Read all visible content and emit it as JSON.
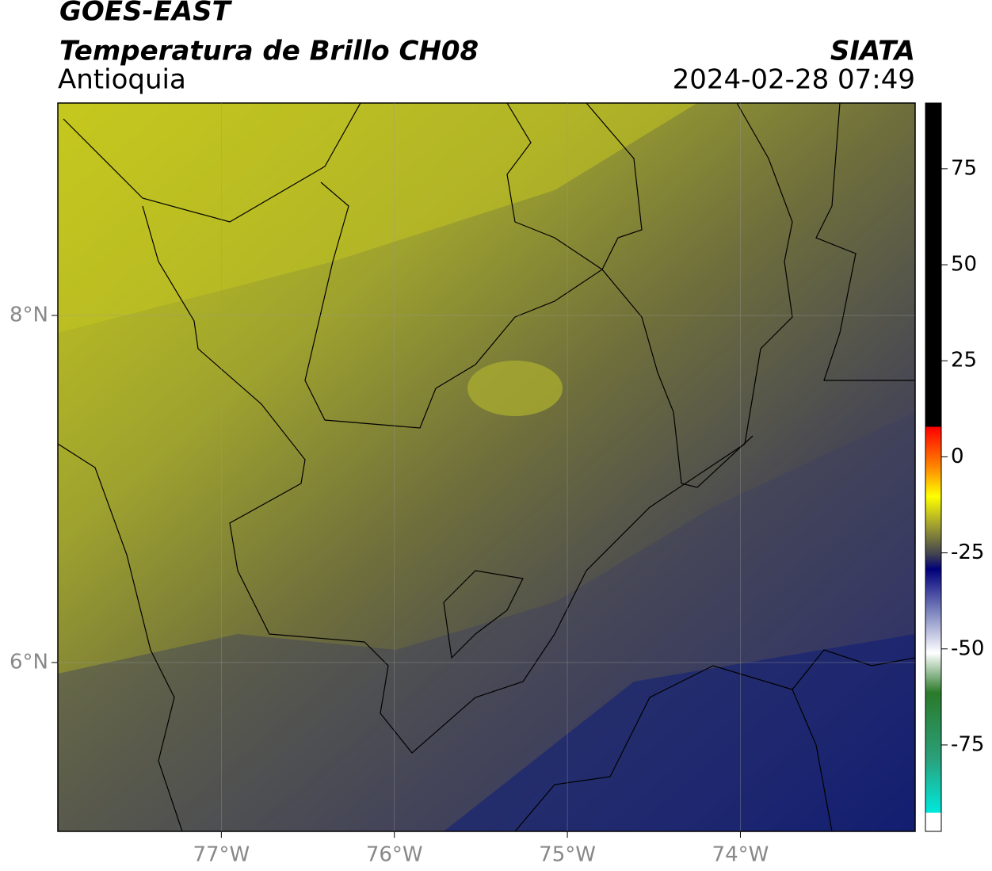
{
  "header": {
    "title": "GOES-EAST",
    "subtitle": "Temperatura de Brillo CH08",
    "region": "Antioquia",
    "source": "SIATA",
    "timestamp": "2024-02-28 07:49"
  },
  "map": {
    "lonlim": [
      -77.945,
      -72.99
    ],
    "latlim": [
      5.027,
      9.224
    ],
    "lon_ticks": [
      {
        "value": -77,
        "label": "77°W"
      },
      {
        "value": -76,
        "label": "76°W"
      },
      {
        "value": -75,
        "label": "75°W"
      },
      {
        "value": -74,
        "label": "74°W"
      }
    ],
    "lat_ticks": [
      {
        "value": 8,
        "label": "8°N"
      },
      {
        "value": 6,
        "label": "6°N"
      }
    ]
  },
  "colorbar": {
    "lim": [
      -97.5,
      92.1
    ],
    "ticks": [
      75,
      50,
      25,
      0,
      -25,
      -50,
      -75
    ]
  }
}
